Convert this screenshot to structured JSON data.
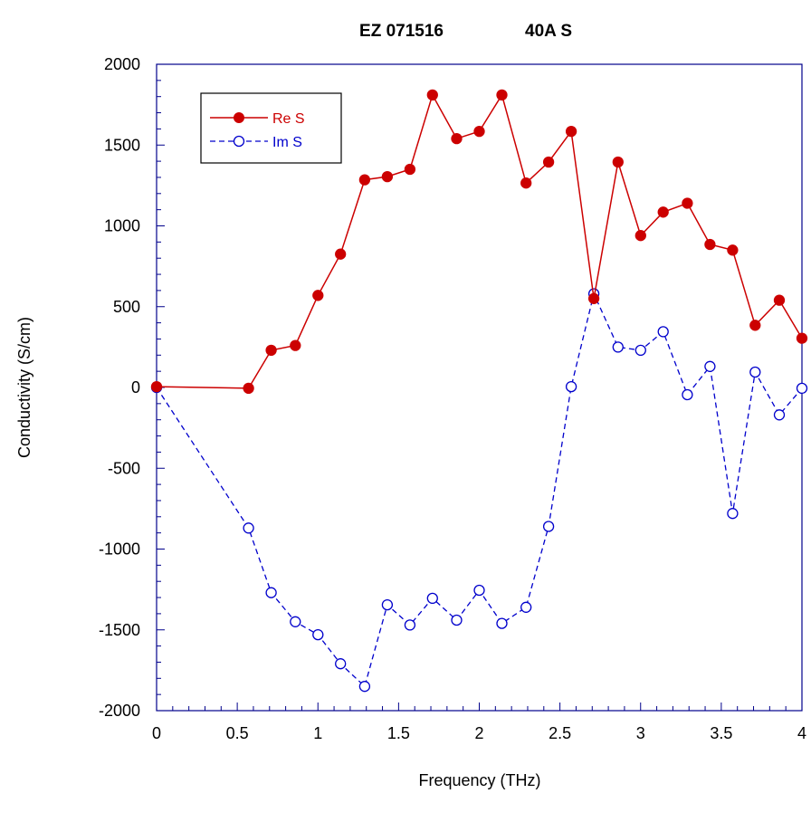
{
  "chart_data": {
    "type": "line",
    "title_left": "EZ 071516",
    "title_right": "40A S",
    "xlabel": "Frequency (THz)",
    "ylabel": "Conductivity (S/cm)",
    "xlim": [
      0,
      4
    ],
    "ylim": [
      -2000,
      2000
    ],
    "x_ticks": [
      0,
      0.5,
      1,
      1.5,
      2,
      2.5,
      3,
      3.5,
      4
    ],
    "x_tick_labels": [
      "0",
      "0.5",
      "1",
      "1.5",
      "2",
      "2.5",
      "3",
      "3.5",
      "4"
    ],
    "y_ticks": [
      2000,
      1500,
      1000,
      500,
      0,
      -500,
      -1000,
      -1500,
      -2000
    ],
    "y_tick_labels": [
      "2000",
      "1500",
      "1000",
      "500",
      "0",
      "-500",
      "-1000",
      "-1500",
      "-2000"
    ],
    "x_minor_step": 0.1,
    "y_minor_step": 100,
    "grid": false,
    "legend_position": "top-left",
    "series": [
      {
        "name": "Re S",
        "color": "#cc0000",
        "line_style": "solid",
        "marker": "filled-circle",
        "points": [
          [
            0,
            5
          ],
          [
            0.57,
            -5
          ],
          [
            0.71,
            230
          ],
          [
            0.86,
            260
          ],
          [
            1.0,
            570
          ],
          [
            1.14,
            825
          ],
          [
            1.29,
            1285
          ],
          [
            1.43,
            1305
          ],
          [
            1.57,
            1350
          ],
          [
            1.71,
            1810
          ],
          [
            1.86,
            1540
          ],
          [
            2.0,
            1585
          ],
          [
            2.14,
            1810
          ],
          [
            2.29,
            1265
          ],
          [
            2.43,
            1395
          ],
          [
            2.57,
            1585
          ],
          [
            2.71,
            550
          ],
          [
            2.86,
            1395
          ],
          [
            3.0,
            940
          ],
          [
            3.14,
            1085
          ],
          [
            3.29,
            1140
          ],
          [
            3.43,
            885
          ],
          [
            3.57,
            850
          ],
          [
            3.71,
            385
          ],
          [
            3.86,
            540
          ],
          [
            4.0,
            305
          ]
        ]
      },
      {
        "name": "Im S",
        "color": "#0000cc",
        "line_style": "dashed",
        "marker": "open-circle",
        "points": [
          [
            0,
            0
          ],
          [
            0.57,
            -870
          ],
          [
            0.71,
            -1270
          ],
          [
            0.86,
            -1450
          ],
          [
            1.0,
            -1530
          ],
          [
            1.14,
            -1710
          ],
          [
            1.29,
            -1850
          ],
          [
            1.43,
            -1345
          ],
          [
            1.57,
            -1470
          ],
          [
            1.71,
            -1305
          ],
          [
            1.86,
            -1440
          ],
          [
            2.0,
            -1255
          ],
          [
            2.14,
            -1460
          ],
          [
            2.29,
            -1360
          ],
          [
            2.43,
            -860
          ],
          [
            2.57,
            5
          ],
          [
            2.71,
            580
          ],
          [
            2.86,
            250
          ],
          [
            3.0,
            230
          ],
          [
            3.14,
            345
          ],
          [
            3.29,
            -45
          ],
          [
            3.43,
            130
          ],
          [
            3.57,
            -780
          ],
          [
            3.71,
            95
          ],
          [
            3.86,
            -170
          ],
          [
            4.0,
            -5
          ]
        ]
      }
    ]
  }
}
